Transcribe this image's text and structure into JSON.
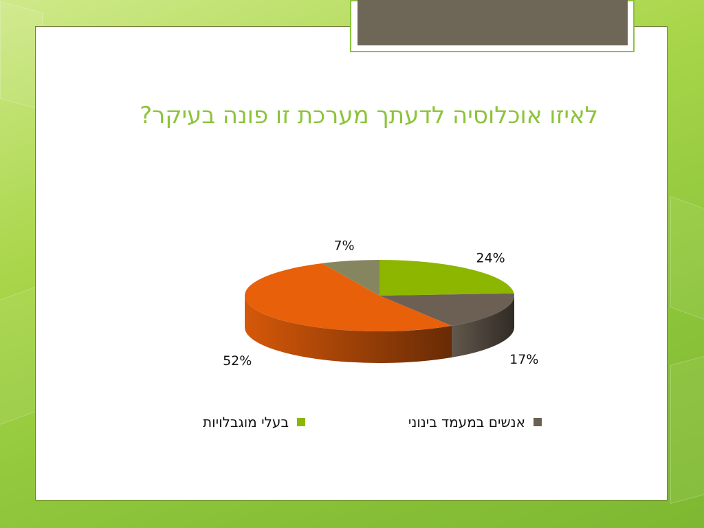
{
  "slide": {
    "title": "לאיזו אוכלוסיה לדעתך מערכת זו פונה בעיקר?",
    "title_color": "#8cc43a",
    "accent_color": "#8cc43a",
    "tab_color": "#6e6657"
  },
  "chart_data": {
    "type": "pie",
    "style": "3d",
    "title": "",
    "slices": [
      {
        "name": "בעלי מוגבלויות",
        "value": 24,
        "label": "24%",
        "color": "#8db600"
      },
      {
        "name": "אנשים במעמד בינוני",
        "value": 17,
        "label": "17%",
        "color": "#6b6053"
      },
      {
        "name": "",
        "value": 52,
        "label": "52%",
        "color": "#e8600a"
      },
      {
        "name": "",
        "value": 7,
        "label": "7%",
        "color": "#858660"
      }
    ],
    "legend": {
      "position": "bottom",
      "entries": [
        {
          "name": "בעלי מוגבלויות",
          "color": "#8db600"
        },
        {
          "name": "אנשים במעמד בינוני",
          "color": "#6b6053"
        }
      ]
    }
  }
}
